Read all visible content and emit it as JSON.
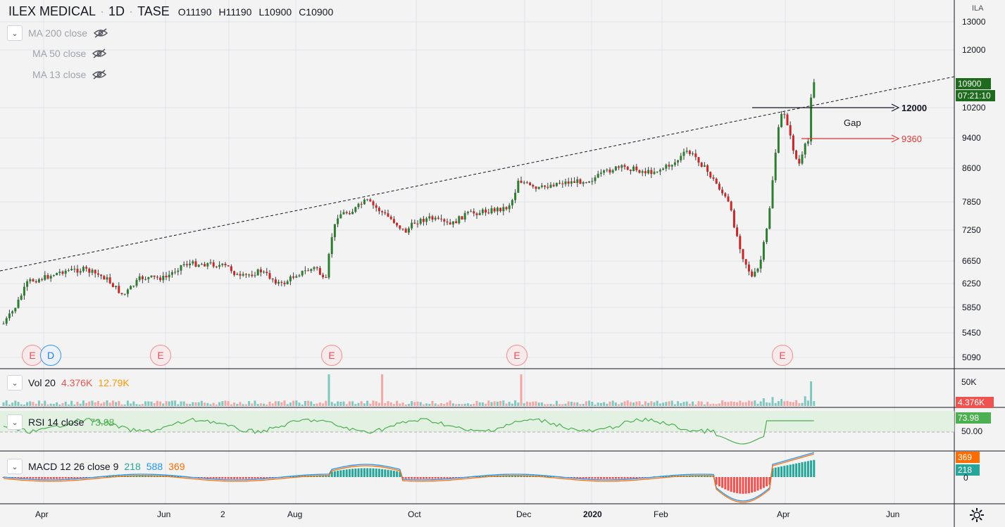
{
  "header": {
    "symbol": "ILEX MEDICAL",
    "interval": "1D",
    "exchange": "TASE",
    "separator": "·",
    "open": "O11190",
    "high": "H11190",
    "low": "L10900",
    "close": "C10900"
  },
  "ma_legend": [
    {
      "label": "MA 200 close"
    },
    {
      "label": "MA 50 close"
    },
    {
      "label": "MA 13 close"
    }
  ],
  "currency": "ILA",
  "price_axis_labels": [
    "13000",
    "12000",
    "10200",
    "9400",
    "8600",
    "7850",
    "7250",
    "6650",
    "6250",
    "5850",
    "5450",
    "5090"
  ],
  "price_tag": {
    "value": "10900",
    "countdown": "07:21:10",
    "color": "#1e6b1e"
  },
  "time_axis_labels": [
    "Apr",
    "Jun",
    "2",
    "Aug",
    "Oct",
    "Dec",
    "2020",
    "Feb",
    "Apr",
    "Jun"
  ],
  "annotations": {
    "level_12000": "12000",
    "level_9360": "9360",
    "gap": "Gap"
  },
  "events": {
    "earnings": "E",
    "dividend": "D"
  },
  "volume": {
    "label": "Vol 20",
    "value1": "4.376K",
    "value2": "12.79K",
    "axis": "50K",
    "tag": "4.376K"
  },
  "rsi": {
    "label": "RSI 14 close",
    "value": "73.98",
    "axis": "50.00",
    "tag": "73.98"
  },
  "macd": {
    "label": "MACD 12 26 close 9",
    "macd": "218",
    "signal": "588",
    "hist": "369",
    "axis": "0",
    "tag_top": "369",
    "tag_bottom": "218"
  },
  "colors": {
    "up": "#26a69a",
    "down": "#ef5350",
    "candle_up": "#2e7d32",
    "candle_down": "#c62828",
    "macd_line": "#2196f3",
    "signal_line": "#ff6d00",
    "rsi_line": "#4caf50"
  },
  "chart_data": {
    "type": "candlestick",
    "title": "ILEX MEDICAL · 1D · TASE",
    "ylim": [
      4900,
      13400
    ],
    "y_ticks": [
      13000,
      12000,
      10200,
      9400,
      8600,
      7850,
      7250,
      6650,
      6250,
      5850,
      5450,
      5090
    ],
    "approximate_close_series": [
      {
        "t": "Mar",
        "v": 5600
      },
      {
        "t": "Apr",
        "v": 6400
      },
      {
        "t": "May",
        "v": 6450
      },
      {
        "t": "May-late",
        "v": 6050
      },
      {
        "t": "Jun",
        "v": 6550
      },
      {
        "t": "Jul",
        "v": 6450
      },
      {
        "t": "Aug",
        "v": 6300
      },
      {
        "t": "Aug-mid",
        "v": 7500
      },
      {
        "t": "Sep",
        "v": 8000
      },
      {
        "t": "Oct",
        "v": 7350
      },
      {
        "t": "Nov",
        "v": 7500
      },
      {
        "t": "Dec",
        "v": 8450
      },
      {
        "t": "Jan",
        "v": 8550
      },
      {
        "t": "Feb",
        "v": 8800
      },
      {
        "t": "Feb-late",
        "v": 8600
      },
      {
        "t": "Mar-2020",
        "v": 6250
      },
      {
        "t": "Mar-late",
        "v": 9900
      },
      {
        "t": "Apr-2020",
        "v": 8800
      },
      {
        "t": "Apr-mid",
        "v": 10900
      }
    ],
    "horizontal_levels": [
      12000,
      9360
    ],
    "trendline": "dashed ascending resistance line"
  }
}
